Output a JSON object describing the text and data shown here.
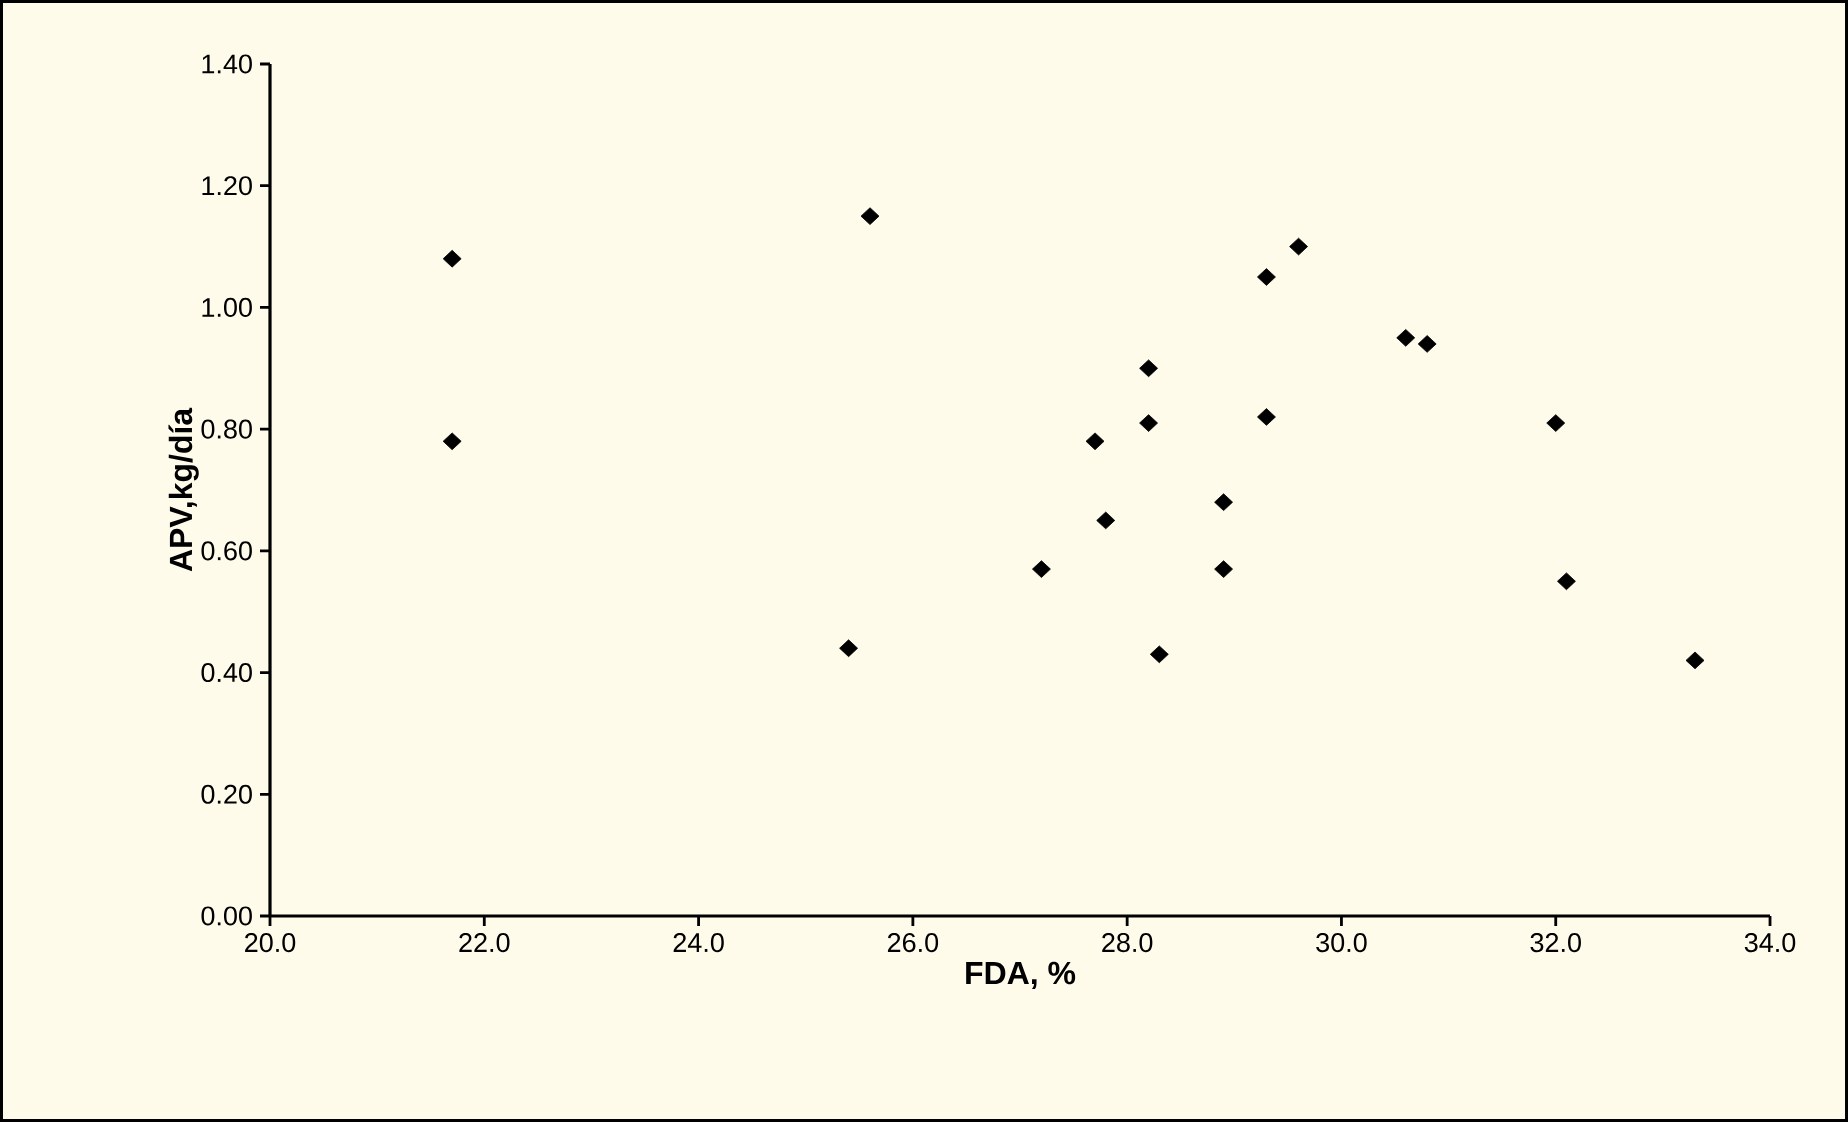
{
  "chart_data": {
    "type": "scatter",
    "xlabel": "FDA, %",
    "ylabel": "APV,kg/día",
    "marker": "diamond",
    "xlim": [
      20,
      34
    ],
    "ylim": [
      0,
      1.4
    ],
    "xticks": [
      {
        "value": 20,
        "label": "20.0"
      },
      {
        "value": 22,
        "label": "22.0"
      },
      {
        "value": 24,
        "label": "24.0"
      },
      {
        "value": 26,
        "label": "26.0"
      },
      {
        "value": 28,
        "label": "28.0"
      },
      {
        "value": 30,
        "label": "30.0"
      },
      {
        "value": 32,
        "label": "32.0"
      },
      {
        "value": 34,
        "label": "34.0"
      }
    ],
    "yticks": [
      {
        "value": 0,
        "label": "0.00"
      },
      {
        "value": 0.2,
        "label": "0.20"
      },
      {
        "value": 0.4,
        "label": "0.40"
      },
      {
        "value": 0.6,
        "label": "0.60"
      },
      {
        "value": 0.8,
        "label": "0.80"
      },
      {
        "value": 1.0,
        "label": "1.00"
      },
      {
        "value": 1.2,
        "label": "1.20"
      },
      {
        "value": 1.4,
        "label": "1.40"
      }
    ],
    "series": [
      {
        "color": "#000000",
        "x": [
          21.7,
          21.7,
          25.6,
          25.4,
          27.2,
          27.7,
          27.8,
          28.2,
          28.2,
          28.3,
          28.9,
          28.9,
          29.3,
          29.3,
          29.6,
          30.6,
          30.8,
          32.0,
          32.1,
          33.3
        ],
        "values": [
          1.08,
          0.78,
          1.15,
          0.44,
          0.57,
          0.78,
          0.65,
          0.9,
          0.81,
          0.43,
          0.68,
          0.57,
          1.05,
          0.82,
          1.1,
          0.95,
          0.94,
          0.81,
          0.55,
          0.42
        ]
      }
    ]
  }
}
